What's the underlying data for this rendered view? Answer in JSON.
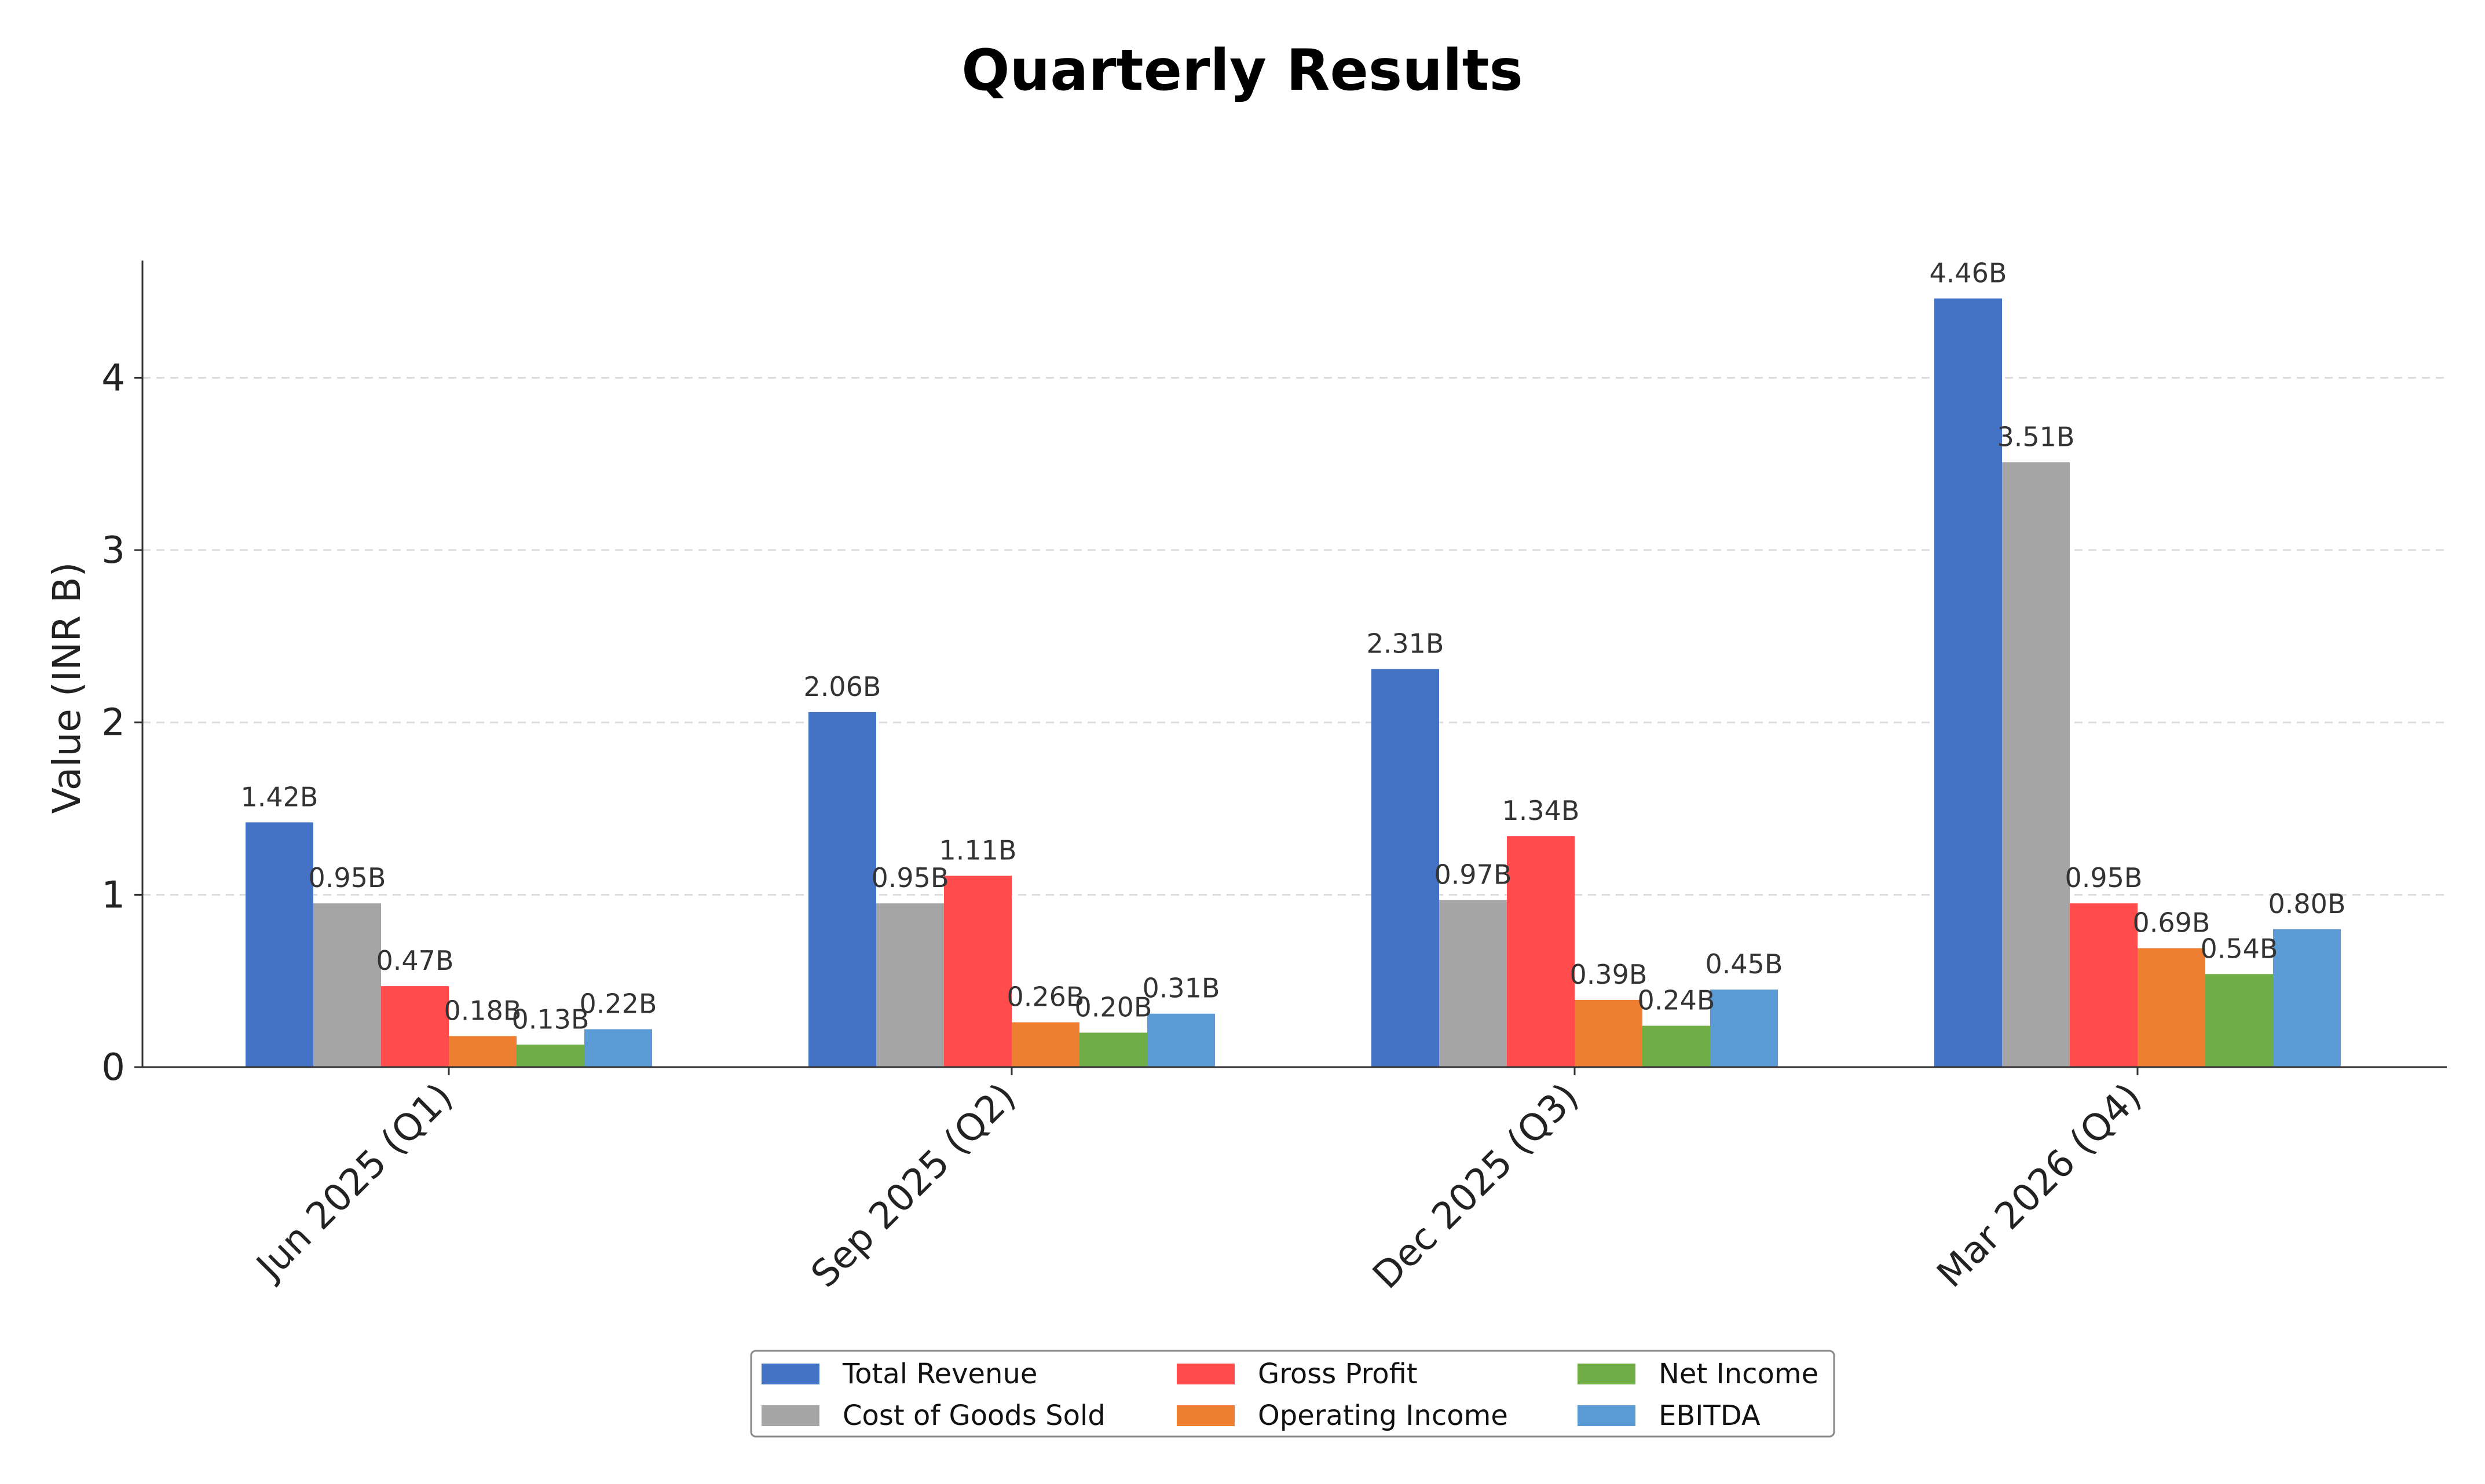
{
  "chart_data": {
    "type": "bar",
    "title": "Quarterly Results",
    "ylabel": "Value (INR B)",
    "xlabel": "",
    "categories": [
      "Jun 2025 (Q1)",
      "Sep 2025 (Q2)",
      "Dec 2025 (Q3)",
      "Mar 2026 (Q4)"
    ],
    "ylim": [
      0,
      4.68
    ],
    "yticks": [
      "0",
      "1",
      "2",
      "3",
      "4"
    ],
    "grid": "y dashed",
    "legend_position": "bottom-center",
    "value_suffix": "B",
    "series": [
      {
        "name": "Total Revenue",
        "color": "#4472C4",
        "values": [
          1.42,
          2.06,
          2.31,
          4.46
        ]
      },
      {
        "name": "Cost of Goods Sold",
        "color": "#A5A5A5",
        "values": [
          0.95,
          0.95,
          0.97,
          3.51
        ]
      },
      {
        "name": "Gross Profit",
        "color": "#FF4B4B",
        "values": [
          0.47,
          1.11,
          1.34,
          0.95
        ]
      },
      {
        "name": "Operating Income",
        "color": "#ED7D31",
        "values": [
          0.18,
          0.26,
          0.39,
          0.69
        ]
      },
      {
        "name": "Net Income",
        "color": "#70AD47",
        "values": [
          0.13,
          0.2,
          0.24,
          0.54
        ]
      },
      {
        "name": "EBITDA",
        "color": "#5B9BD5",
        "values": [
          0.22,
          0.31,
          0.45,
          0.8
        ]
      }
    ]
  }
}
